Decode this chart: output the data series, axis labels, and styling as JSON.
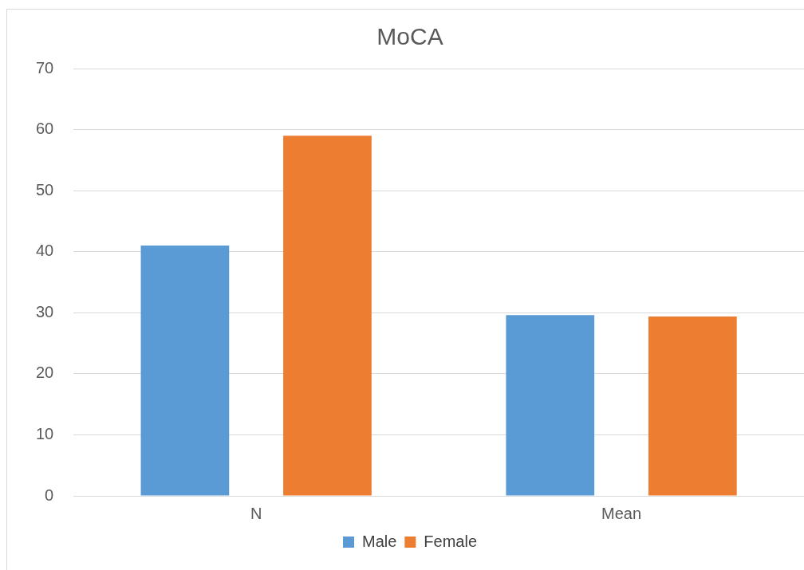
{
  "chart_data": {
    "type": "bar",
    "title": "MoCA",
    "categories": [
      "N",
      "Mean"
    ],
    "series": [
      {
        "name": "Male",
        "color": "#5b9bd5",
        "values": [
          41,
          29.6
        ]
      },
      {
        "name": "Female",
        "color": "#ed7d31",
        "values": [
          59,
          29.4
        ]
      }
    ],
    "ylim": [
      0,
      70
    ],
    "yticks": [
      0,
      10,
      20,
      30,
      40,
      50,
      60,
      70
    ],
    "grid": "y",
    "legend": "bottom"
  }
}
